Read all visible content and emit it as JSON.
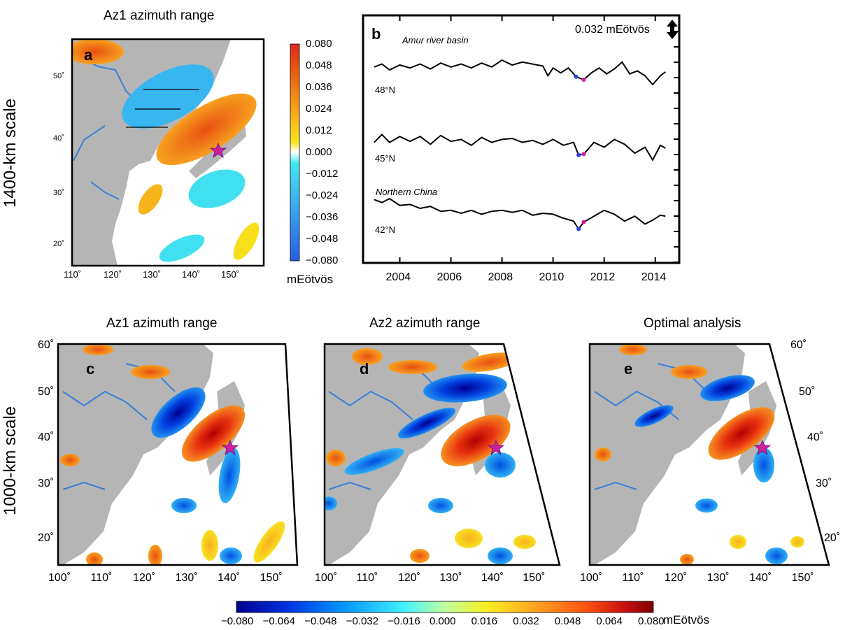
{
  "colors": {
    "land": "#b5b5b5",
    "river": "#3b7fd6",
    "star": "#d0209a",
    "frame": "#000000",
    "cb_top": [
      "#2b6ce6",
      "#3aa0f0",
      "#40e0f0",
      "#ffffff",
      "#f7e51a",
      "#f7b91a",
      "#f08a1a",
      "#e85a10",
      "#d82a1c"
    ],
    "cb_bottom": [
      "#00008f",
      "#0040ff",
      "#00a0ff",
      "#40f0ff",
      "#ffffff",
      "#f8f020",
      "#ffa020",
      "#ff6010",
      "#c81010",
      "#800000"
    ]
  },
  "icons": {
    "star": "star-icon",
    "scale": "double-arrow-icon"
  },
  "row_labels": {
    "top": "1400-km scale",
    "bottom": "1000-km scale"
  },
  "panel_a": {
    "letter": "a",
    "title": "Az1 azimuth range",
    "xticks": [
      "110˚",
      "120˚",
      "130˚",
      "140˚",
      "150˚"
    ],
    "yticks": [
      "50˚",
      "40˚",
      "30˚",
      "20˚"
    ],
    "colorbar": {
      "ticks": [
        "0.080",
        "0.048",
        "0.036",
        "0.024",
        "0.012",
        "0.000",
        "−0.012",
        "−0.024",
        "−0.036",
        "−0.048",
        "−0.080"
      ],
      "unit": "mEötvös"
    }
  },
  "panel_b": {
    "letter": "b",
    "scale_label": "0.032 mEötvös",
    "annot_top": "Amur river basin",
    "annot_bottom": "Northern China",
    "series_labels": [
      "48°N",
      "45°N",
      "42°N"
    ],
    "xticks": [
      "2004",
      "2006",
      "2008",
      "2010",
      "2012",
      "2014"
    ]
  },
  "panel_c": {
    "letter": "c",
    "title": "Az1 azimuth range"
  },
  "panel_d": {
    "letter": "d",
    "title": "Az2 azimuth range"
  },
  "panel_e": {
    "letter": "e",
    "title": "Optimal analysis"
  },
  "map_lower": {
    "xticks": [
      "100˚",
      "110˚",
      "120˚",
      "130˚",
      "140˚",
      "150˚"
    ],
    "yticks": [
      "60˚",
      "50˚",
      "40˚",
      "30˚",
      "20˚"
    ]
  },
  "colorbar_bottom": {
    "ticks": [
      "−0.080",
      "−0.064",
      "−0.048",
      "−0.032",
      "−0.016",
      "0.000",
      "0.016",
      "0.032",
      "0.048",
      "0.064",
      "0.080"
    ],
    "unit": "mEötvös"
  },
  "chart_data": [
    {
      "type": "heatmap",
      "panel": "a",
      "title": "Az1 azimuth range",
      "xlim": [
        110,
        155
      ],
      "ylim": [
        16,
        56
      ],
      "color_range": [
        -0.08,
        0.08
      ],
      "colorbar_unit": "mEötvös",
      "anomalies": [
        {
          "lon": 130,
          "lat": 48,
          "value": -0.03
        },
        {
          "lon": 137,
          "lat": 41,
          "value": 0.045
        },
        {
          "lon": 113,
          "lat": 54,
          "value": 0.04
        },
        {
          "lon": 146,
          "lat": 32,
          "value": -0.02
        },
        {
          "lon": 123,
          "lat": 27,
          "value": 0.03
        },
        {
          "lon": 132,
          "lat": 22,
          "value": -0.02
        },
        {
          "lon": 150,
          "lat": 21,
          "value": 0.015
        }
      ],
      "profile_lines_lat": [
        48,
        45,
        42
      ],
      "epicenter": {
        "lon": 142.4,
        "lat": 38.3
      }
    },
    {
      "type": "line",
      "panel": "b",
      "x_range": [
        2003.0,
        2014.5
      ],
      "scale_bar": "0.032 mEötvös",
      "series": [
        {
          "name": "48°N",
          "x": [
            2003.0,
            2003.3,
            2003.6,
            2004.0,
            2004.4,
            2004.8,
            2005.2,
            2005.6,
            2006.0,
            2006.4,
            2006.8,
            2007.2,
            2007.6,
            2008.0,
            2008.4,
            2008.8,
            2009.2,
            2009.6,
            2009.8,
            2010.0,
            2010.3,
            2010.6,
            2010.9,
            2011.2,
            2011.5,
            2011.8,
            2012.1,
            2012.4,
            2012.7,
            2013.0,
            2013.3,
            2013.6,
            2013.9,
            2014.2,
            2014.4
          ],
          "y": [
            0.006,
            0.012,
            0.0,
            0.01,
            0.004,
            0.012,
            0.002,
            0.014,
            0.006,
            0.012,
            0.004,
            0.014,
            0.006,
            0.02,
            0.01,
            0.016,
            0.012,
            0.008,
            -0.012,
            0.004,
            -0.006,
            0.004,
            -0.014,
            -0.02,
            -0.006,
            0.004,
            -0.008,
            0.002,
            0.016,
            -0.008,
            -0.002,
            -0.012,
            -0.03,
            -0.012,
            -0.004
          ]
        },
        {
          "name": "45°N",
          "x": [
            2003.0,
            2003.3,
            2003.6,
            2004.0,
            2004.4,
            2004.8,
            2005.2,
            2005.6,
            2006.0,
            2006.4,
            2006.8,
            2007.2,
            2007.6,
            2008.0,
            2008.4,
            2008.8,
            2009.2,
            2009.6,
            2010.0,
            2010.4,
            2010.8,
            2011.0,
            2011.2,
            2011.6,
            2012.0,
            2012.4,
            2012.8,
            2013.2,
            2013.6,
            2013.9,
            2014.2,
            2014.4
          ],
          "y": [
            0.002,
            0.018,
            0.002,
            0.014,
            0.004,
            0.014,
            -0.002,
            0.016,
            0.004,
            0.008,
            -0.004,
            0.012,
            0.002,
            0.008,
            0.01,
            0.002,
            0.006,
            -0.002,
            0.008,
            -0.004,
            0.002,
            -0.024,
            -0.022,
            0.002,
            -0.008,
            0.008,
            -0.002,
            -0.02,
            -0.008,
            -0.034,
            -0.004,
            -0.01
          ]
        },
        {
          "name": "42°N",
          "x": [
            2003.0,
            2003.3,
            2003.6,
            2004.0,
            2004.4,
            2004.8,
            2005.2,
            2005.6,
            2006.0,
            2006.4,
            2006.8,
            2007.2,
            2007.6,
            2008.0,
            2008.4,
            2008.8,
            2009.2,
            2009.6,
            2010.0,
            2010.4,
            2010.8,
            2011.0,
            2011.2,
            2011.6,
            2012.0,
            2012.4,
            2012.8,
            2013.2,
            2013.6,
            2013.9,
            2014.2,
            2014.4
          ],
          "y": [
            0.028,
            0.022,
            0.03,
            0.016,
            0.018,
            0.01,
            0.014,
            0.004,
            0.006,
            0.0,
            0.006,
            -0.002,
            0.004,
            0.006,
            0.002,
            0.006,
            -0.004,
            0.0,
            -0.002,
            -0.01,
            -0.016,
            -0.032,
            -0.018,
            -0.006,
            0.006,
            -0.002,
            -0.016,
            -0.006,
            -0.022,
            -0.014,
            -0.004,
            -0.006
          ]
        }
      ]
    },
    {
      "type": "heatmap",
      "panel": "c",
      "title": "Az1 azimuth range",
      "xlim": [
        100,
        155
      ],
      "ylim": [
        15,
        60
      ],
      "color_range": [
        -0.08,
        0.08
      ],
      "epicenter": {
        "lon": 142.4,
        "lat": 38.3
      }
    },
    {
      "type": "heatmap",
      "panel": "d",
      "title": "Az2 azimuth range",
      "xlim": [
        100,
        155
      ],
      "ylim": [
        15,
        60
      ],
      "color_range": [
        -0.08,
        0.08
      ],
      "epicenter": {
        "lon": 142.4,
        "lat": 38.3
      }
    },
    {
      "type": "heatmap",
      "panel": "e",
      "title": "Optimal analysis",
      "xlim": [
        100,
        155
      ],
      "ylim": [
        15,
        60
      ],
      "color_range": [
        -0.08,
        0.08
      ],
      "epicenter": {
        "lon": 142.4,
        "lat": 38.3
      }
    }
  ]
}
